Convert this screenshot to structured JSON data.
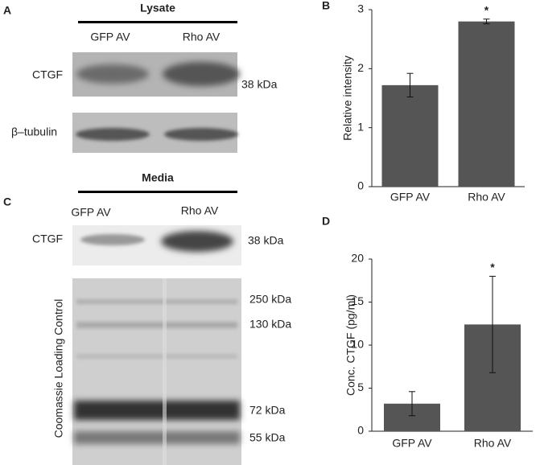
{
  "blots": {
    "lysate": {
      "panel_label": "A",
      "title": "Lysate",
      "lanes": [
        "GFP AV",
        "Rho AV"
      ],
      "rows": [
        {
          "label": "CTGF",
          "marker": "38 kDa"
        },
        {
          "label": "β–tubulin"
        }
      ]
    },
    "media": {
      "panel_label": "C",
      "title": "Media",
      "lanes": [
        "GFP AV",
        "Rho AV"
      ],
      "ctgf": {
        "label": "CTGF",
        "marker": "38 kDa"
      },
      "loading": {
        "label": "Coomassie Loading Control",
        "markers": [
          "250 kDa",
          "130 kDa",
          "72 kDa",
          "55 kDa"
        ]
      }
    }
  },
  "chart_data": [
    {
      "type": "bar",
      "panel_label": "B",
      "ylabel": "Relative intensity",
      "categories": [
        "GFP AV",
        "Rho AV"
      ],
      "values": [
        1.72,
        2.8
      ],
      "errors": [
        0.2,
        0.04
      ],
      "color": "#555555",
      "ylim": [
        0,
        3
      ],
      "yticks": [
        0,
        1,
        2,
        3
      ],
      "annotations": [
        {
          "text": "*",
          "category": "Rho AV"
        }
      ]
    },
    {
      "type": "bar",
      "panel_label": "D",
      "ylabel": "Conc. CTGF (pg/ml)",
      "categories": [
        "GFP AV",
        "Rho AV"
      ],
      "values": [
        3.2,
        12.4
      ],
      "errors": [
        1.4,
        5.6
      ],
      "color": "#555555",
      "ylim": [
        0,
        20
      ],
      "yticks": [
        0,
        5,
        10,
        15,
        20
      ],
      "annotations": [
        {
          "text": "*",
          "category": "Rho AV"
        }
      ]
    }
  ]
}
